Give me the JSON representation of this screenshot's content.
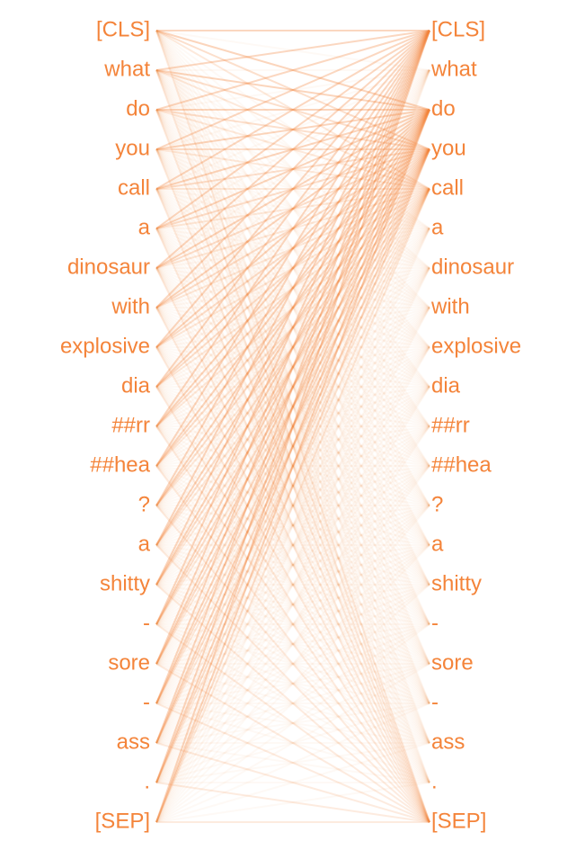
{
  "accent_color": "#f4843a",
  "tokens_left": [
    "[CLS]",
    "what",
    "do",
    "you",
    "call",
    "a",
    "dinosaur",
    "with",
    "explosive",
    "dia",
    "##rr",
    "##hea",
    "?",
    "a",
    "shitty",
    "-",
    "sore",
    "-",
    "ass",
    ".",
    "[SEP]"
  ],
  "tokens_right": [
    "[CLS]",
    "what",
    "do",
    "you",
    "call",
    "a",
    "dinosaur",
    "with",
    "explosive",
    "dia",
    "##rr",
    "##hea",
    "?",
    "a",
    "shitty",
    "-",
    "sore",
    "-",
    "ass",
    ".",
    "[SEP]"
  ]
}
